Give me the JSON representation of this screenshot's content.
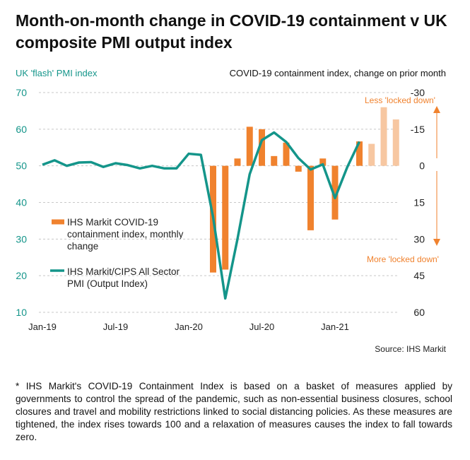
{
  "title": "Month-on-month change in COVID-19 containment v UK composite PMI output index",
  "source": "Source: IHS Markit",
  "footnote": "* IHS Markit's COVID-19 Containment Index is based on a basket of measures applied by governments to control the spread of the pandemic, such as non-essential business closures, school closures and travel and mobility restrictions linked to social distancing policies. As these measures are tightened, the index rises towards 100 and a relaxation of measures causes the index to fall towards zero.",
  "chart_data": {
    "type": "bar+line",
    "ylabel_left": "UK 'flash' PMI index",
    "ylabel_right": "COVID-19 containment index, change on prior month",
    "ylim_left": [
      10,
      70
    ],
    "ylim_right": [
      -30,
      60
    ],
    "right_axis_inverted": true,
    "left_ticks": [
      "70",
      "60",
      "50",
      "40",
      "30",
      "20",
      "10"
    ],
    "right_ticks": [
      "-30",
      "-15",
      "0",
      "15",
      "30",
      "45",
      "60"
    ],
    "x_ticks": [
      "Jan-19",
      "Jul-19",
      "Jan-20",
      "Jul-20",
      "Jan-21"
    ],
    "months": [
      "Jan-19",
      "Feb-19",
      "Mar-19",
      "Apr-19",
      "May-19",
      "Jun-19",
      "Jul-19",
      "Aug-19",
      "Sep-19",
      "Oct-19",
      "Nov-19",
      "Dec-19",
      "Jan-20",
      "Feb-20",
      "Mar-20",
      "Apr-20",
      "May-20",
      "Jun-20",
      "Jul-20",
      "Aug-20",
      "Sep-20",
      "Oct-20",
      "Nov-20",
      "Dec-20",
      "Jan-21",
      "Feb-21",
      "Mar-21",
      "Apr-21",
      "May-21",
      "Jun-21"
    ],
    "series": [
      {
        "name": "IHS Markit COVID-19 containment index, monthly change",
        "type": "bar",
        "color": "#f0822e",
        "projected_color": "#f7c7a1",
        "values": [
          null,
          null,
          null,
          null,
          null,
          null,
          null,
          null,
          null,
          null,
          null,
          null,
          null,
          null,
          43.7,
          42.5,
          -3,
          -16,
          -15,
          -4,
          -9.5,
          2.4,
          26.4,
          -3,
          22,
          0,
          -10,
          -9,
          -24,
          -19
        ],
        "projected_from": "Apr-21"
      },
      {
        "name": "IHS Markit/CIPS All Sector PMI (Output Index)",
        "type": "line",
        "color": "#14958a",
        "values": [
          50.3,
          51.5,
          50.0,
          50.9,
          51.0,
          49.7,
          50.7,
          50.2,
          49.3,
          50.0,
          49.3,
          49.3,
          53.3,
          53.0,
          36.0,
          13.8,
          30.0,
          47.7,
          57.0,
          59.1,
          56.5,
          52.1,
          49.0,
          50.4,
          41.2,
          49.6,
          56.6,
          null,
          null,
          null
        ]
      }
    ],
    "annotations": {
      "up": "Less 'locked down'",
      "down": "More 'locked down'"
    },
    "legend": "center-left"
  }
}
